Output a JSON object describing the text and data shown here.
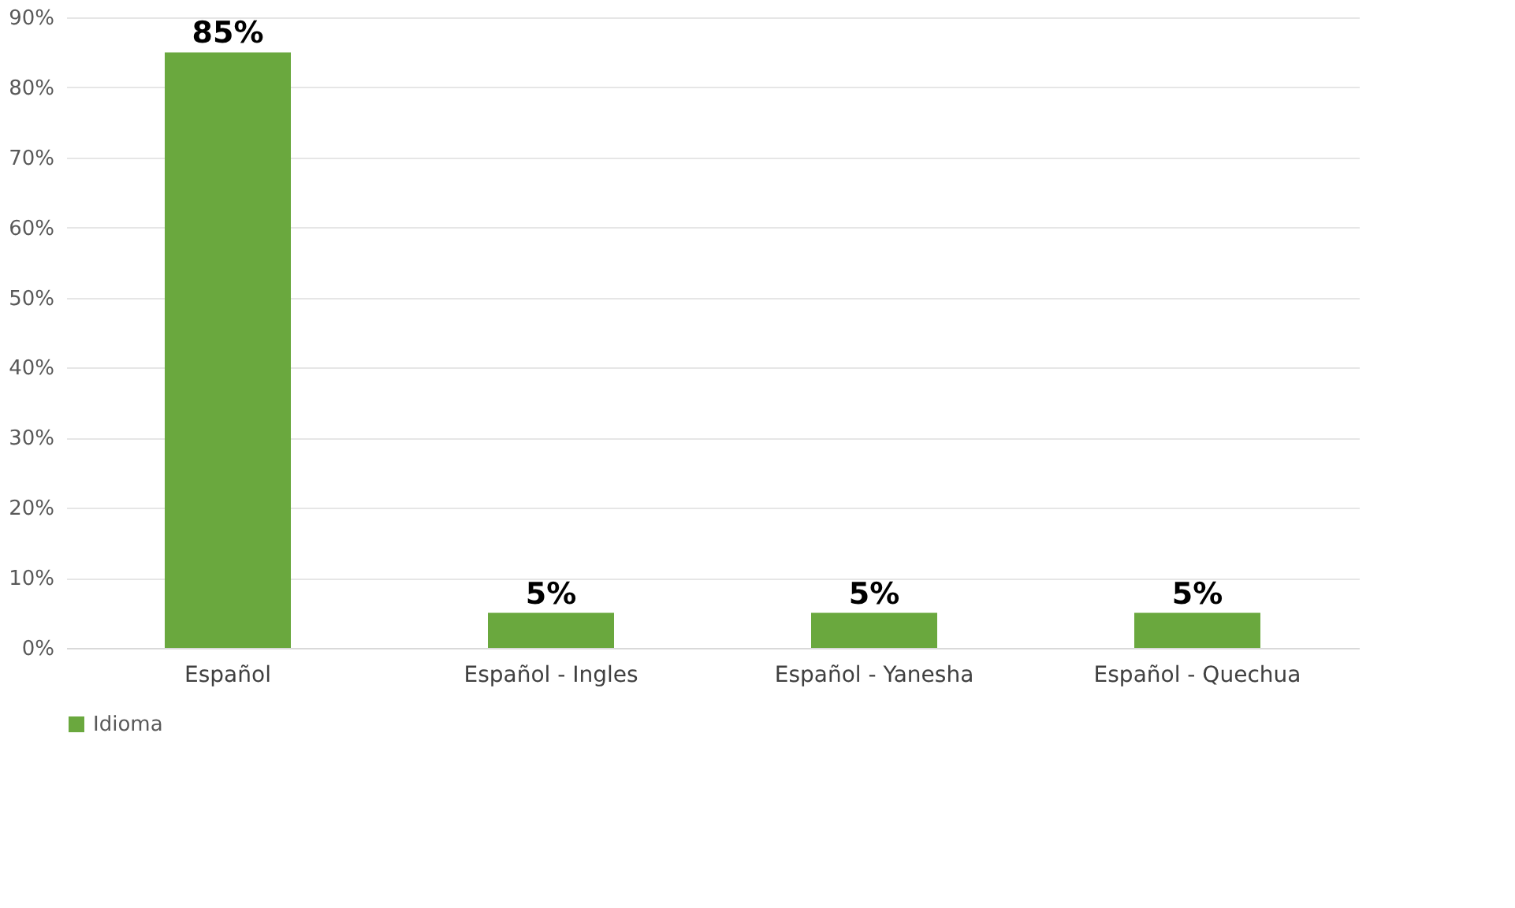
{
  "chart_data": {
    "type": "bar",
    "categories": [
      "Español",
      "Español - Ingles",
      "Español - Yanesha",
      "Español - Quechua"
    ],
    "series": [
      {
        "name": "Idioma",
        "color": "#6aa83e",
        "values": [
          85,
          5,
          5,
          5
        ]
      }
    ],
    "ylim": [
      0,
      90
    ],
    "yticks": [
      {
        "value": 0,
        "label": "0%"
      },
      {
        "value": 10,
        "label": "10%"
      },
      {
        "value": 20,
        "label": "20%"
      },
      {
        "value": 30,
        "label": "30%"
      },
      {
        "value": 40,
        "label": "40%"
      },
      {
        "value": 50,
        "label": "50%"
      },
      {
        "value": 60,
        "label": "60%"
      },
      {
        "value": 70,
        "label": "70%"
      },
      {
        "value": 80,
        "label": "80%"
      },
      {
        "value": 90,
        "label": "90%"
      }
    ],
    "value_labels": [
      "85%",
      "5%",
      "5%",
      "5%"
    ],
    "grid": "y",
    "legend": "bottom"
  }
}
